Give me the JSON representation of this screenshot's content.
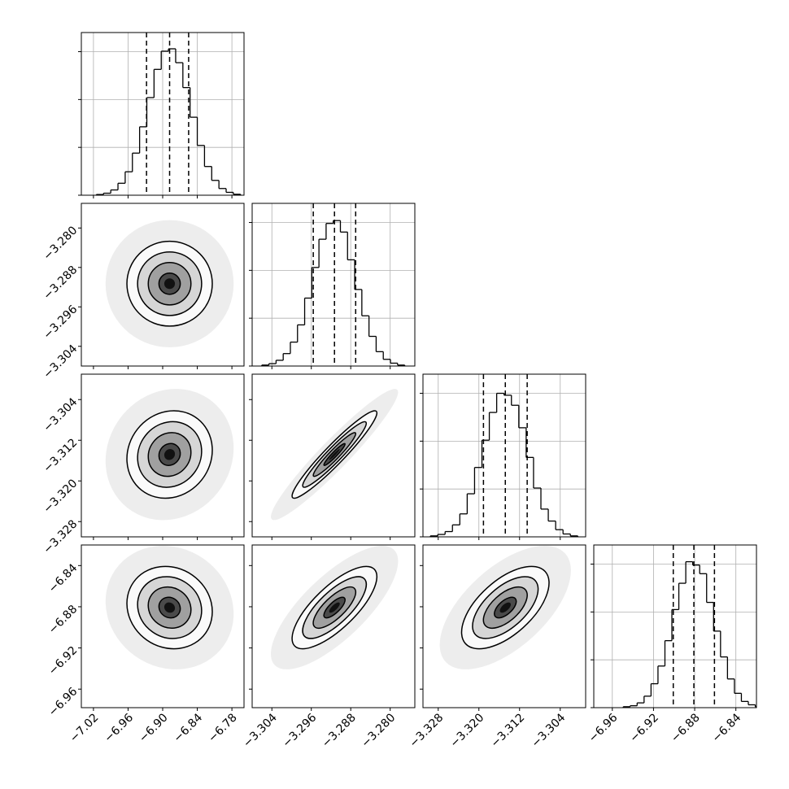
{
  "chart_data": {
    "type": "corner",
    "grid": true,
    "hist_ylim": [
      0,
      3.4
    ],
    "hist_yticks": [
      0,
      1,
      2,
      3
    ],
    "correlations": [
      [
        0
      ],
      [
        0.1,
        0.95
      ],
      [
        -0.1,
        0.75,
        0.6
      ]
    ],
    "params": [
      {
        "lim": [
          -7.041,
          -6.759
        ],
        "sigma": 0.037,
        "ticks": [
          {
            "value": -7.02,
            "label": "−7.02"
          },
          {
            "value": -6.96,
            "label": "−6.96"
          },
          {
            "value": -6.9,
            "label": "−6.90"
          },
          {
            "value": -6.84,
            "label": "−6.84"
          },
          {
            "value": -6.78,
            "label": "−6.78"
          }
        ],
        "quantiles": [
          -6.928,
          -6.888,
          -6.855
        ],
        "bins": [
          -7.015,
          -7.0025,
          -6.99,
          -6.9775,
          -6.965,
          -6.9525,
          -6.94,
          -6.9275,
          -6.915,
          -6.9025,
          -6.89,
          -6.8775,
          -6.865,
          -6.8525,
          -6.84,
          -6.8275,
          -6.815,
          -6.8025,
          -6.79,
          -6.7775,
          -6.765
        ],
        "counts": [
          0.015,
          0.042,
          0.11,
          0.25,
          0.49,
          0.88,
          1.43,
          2.04,
          2.63,
          3.01,
          3.06,
          2.77,
          2.25,
          1.63,
          1.04,
          0.6,
          0.31,
          0.14,
          0.06,
          0.02
        ]
      },
      {
        "lim": [
          -3.308,
          -3.275
        ],
        "sigma": 0.0043,
        "ticks": [
          {
            "value": -3.304,
            "label": "−3.304"
          },
          {
            "value": -3.296,
            "label": "−3.296"
          },
          {
            "value": -3.288,
            "label": "−3.288"
          },
          {
            "value": -3.28,
            "label": "−3.280"
          }
        ],
        "quantiles": [
          -3.2956,
          -3.2913,
          -3.287
        ],
        "bins": [
          -3.30605,
          -3.3046,
          -3.30315,
          -3.3017,
          -3.30025,
          -3.2988,
          -3.29735,
          -3.2959,
          -3.29445,
          -3.293,
          -3.29155,
          -3.2901,
          -3.28865,
          -3.2872,
          -3.28575,
          -3.2843,
          -3.28285,
          -3.2814,
          -3.27995,
          -3.2785,
          -3.27705
        ],
        "counts": [
          0.02,
          0.05,
          0.12,
          0.26,
          0.5,
          0.86,
          1.42,
          2.06,
          2.65,
          2.98,
          3.04,
          2.8,
          2.22,
          1.6,
          1.05,
          0.62,
          0.3,
          0.14,
          0.06,
          0.02
        ]
      },
      {
        "lim": [
          -3.331,
          -3.299
        ],
        "sigma": 0.0043,
        "ticks": [
          {
            "value": -3.328,
            "label": "−3.328"
          },
          {
            "value": -3.32,
            "label": "−3.320"
          },
          {
            "value": -3.312,
            "label": "−3.312"
          },
          {
            "value": -3.304,
            "label": "−3.304"
          }
        ],
        "quantiles": [
          -3.3191,
          -3.3148,
          -3.3105
        ],
        "bins": [
          -3.32955,
          -3.3281,
          -3.32665,
          -3.3252,
          -3.32375,
          -3.3223,
          -3.32085,
          -3.3194,
          -3.31795,
          -3.3165,
          -3.31505,
          -3.3136,
          -3.31215,
          -3.3107,
          -3.30925,
          -3.3078,
          -3.30635,
          -3.3049,
          -3.30345,
          -3.302,
          -3.30055
        ],
        "counts": [
          0.02,
          0.05,
          0.11,
          0.25,
          0.48,
          0.9,
          1.45,
          2.02,
          2.6,
          3.0,
          2.96,
          2.75,
          2.28,
          1.66,
          1.02,
          0.58,
          0.33,
          0.15,
          0.06,
          0.02
        ]
      },
      {
        "lim": [
          -6.978,
          -6.82
        ],
        "sigma": 0.02,
        "ticks": [
          {
            "value": -6.96,
            "label": "−6.96"
          },
          {
            "value": -6.92,
            "label": "−6.92"
          },
          {
            "value": -6.88,
            "label": "−6.88"
          },
          {
            "value": -6.84,
            "label": "−6.84"
          }
        ],
        "quantiles": [
          -6.9008,
          -6.8808,
          -6.8608
        ],
        "bins": [
          -6.9494,
          -6.94265,
          -6.9359,
          -6.92915,
          -6.9224,
          -6.91565,
          -6.9089,
          -6.90215,
          -6.8954,
          -6.88865,
          -6.8819,
          -6.87515,
          -6.8684,
          -6.86165,
          -6.8549,
          -6.84815,
          -6.8414,
          -6.83465,
          -6.8279,
          -6.82115,
          -6.8144
        ],
        "counts": [
          0.02,
          0.04,
          0.1,
          0.24,
          0.5,
          0.87,
          1.4,
          2.05,
          2.6,
          3.05,
          2.98,
          2.8,
          2.2,
          1.6,
          1.06,
          0.6,
          0.3,
          0.13,
          0.06,
          0.02
        ]
      }
    ]
  }
}
